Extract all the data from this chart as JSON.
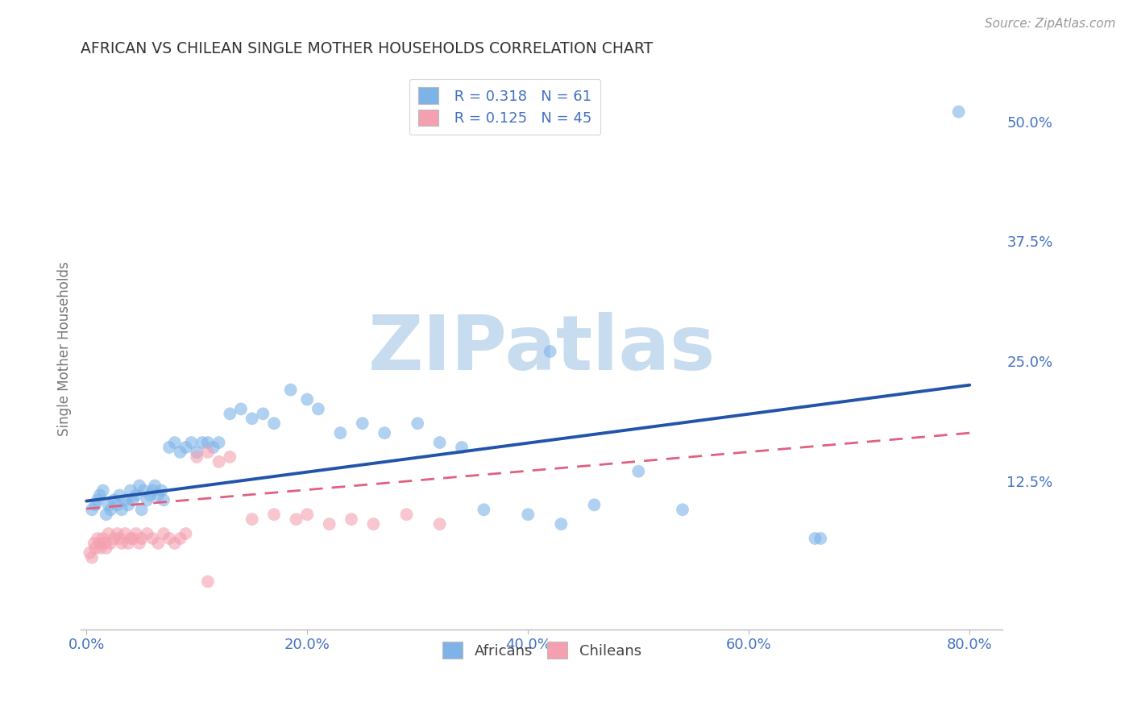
{
  "title": "AFRICAN VS CHILEAN SINGLE MOTHER HOUSEHOLDS CORRELATION CHART",
  "source": "Source: ZipAtlas.com",
  "ylabel": "Single Mother Households",
  "xlabel_ticks": [
    "0.0%",
    "20.0%",
    "40.0%",
    "60.0%",
    "80.0%"
  ],
  "xlabel_vals": [
    0.0,
    0.2,
    0.4,
    0.6,
    0.8
  ],
  "ylabel_ticks": [
    "12.5%",
    "25.0%",
    "37.5%",
    "50.0%"
  ],
  "ylabel_vals": [
    0.125,
    0.25,
    0.375,
    0.5
  ],
  "xlim": [
    -0.005,
    0.83
  ],
  "ylim": [
    -0.03,
    0.555
  ],
  "african_color": "#7EB3E8",
  "chilean_color": "#F4A0B0",
  "african_line_color": "#2255AA",
  "chilean_line_color": "#E06080",
  "african_R": 0.318,
  "african_N": 61,
  "chilean_R": 0.125,
  "chilean_N": 45,
  "african_x": [
    0.005,
    0.008,
    0.01,
    0.012,
    0.015,
    0.018,
    0.02,
    0.022,
    0.025,
    0.028,
    0.03,
    0.032,
    0.035,
    0.038,
    0.04,
    0.042,
    0.045,
    0.048,
    0.05,
    0.052,
    0.055,
    0.058,
    0.06,
    0.062,
    0.065,
    0.068,
    0.07,
    0.075,
    0.08,
    0.085,
    0.09,
    0.095,
    0.1,
    0.105,
    0.11,
    0.115,
    0.12,
    0.13,
    0.14,
    0.15,
    0.16,
    0.17,
    0.185,
    0.2,
    0.21,
    0.23,
    0.25,
    0.27,
    0.3,
    0.32,
    0.34,
    0.36,
    0.4,
    0.43,
    0.46,
    0.5,
    0.54,
    0.66,
    0.665,
    0.79,
    0.42
  ],
  "african_y": [
    0.095,
    0.1,
    0.105,
    0.11,
    0.115,
    0.09,
    0.1,
    0.095,
    0.105,
    0.1,
    0.11,
    0.095,
    0.105,
    0.1,
    0.115,
    0.105,
    0.11,
    0.12,
    0.095,
    0.115,
    0.105,
    0.11,
    0.115,
    0.12,
    0.11,
    0.115,
    0.105,
    0.16,
    0.165,
    0.155,
    0.16,
    0.165,
    0.155,
    0.165,
    0.165,
    0.16,
    0.165,
    0.195,
    0.2,
    0.19,
    0.195,
    0.185,
    0.22,
    0.21,
    0.2,
    0.175,
    0.185,
    0.175,
    0.185,
    0.165,
    0.16,
    0.095,
    0.09,
    0.08,
    0.1,
    0.135,
    0.095,
    0.065,
    0.065,
    0.51,
    0.26
  ],
  "chilean_x": [
    0.003,
    0.005,
    0.007,
    0.008,
    0.01,
    0.012,
    0.013,
    0.015,
    0.017,
    0.018,
    0.02,
    0.022,
    0.025,
    0.028,
    0.03,
    0.032,
    0.035,
    0.038,
    0.04,
    0.042,
    0.045,
    0.048,
    0.05,
    0.055,
    0.06,
    0.065,
    0.07,
    0.075,
    0.08,
    0.085,
    0.09,
    0.1,
    0.11,
    0.12,
    0.13,
    0.15,
    0.17,
    0.19,
    0.2,
    0.22,
    0.24,
    0.26,
    0.29,
    0.32,
    0.11
  ],
  "chilean_y": [
    0.05,
    0.045,
    0.06,
    0.055,
    0.065,
    0.06,
    0.055,
    0.065,
    0.06,
    0.055,
    0.07,
    0.06,
    0.065,
    0.07,
    0.065,
    0.06,
    0.07,
    0.06,
    0.065,
    0.065,
    0.07,
    0.06,
    0.065,
    0.07,
    0.065,
    0.06,
    0.07,
    0.065,
    0.06,
    0.065,
    0.07,
    0.15,
    0.155,
    0.145,
    0.15,
    0.085,
    0.09,
    0.085,
    0.09,
    0.08,
    0.085,
    0.08,
    0.09,
    0.08,
    0.02
  ],
  "african_trend_x0": 0.0,
  "african_trend_y0": 0.104,
  "african_trend_x1": 0.8,
  "african_trend_y1": 0.225,
  "chilean_trend_x0": 0.0,
  "chilean_trend_y0": 0.096,
  "chilean_trend_x1": 0.8,
  "chilean_trend_y1": 0.175,
  "watermark_text": "ZIPatlas",
  "watermark_color": "#C8DCF0",
  "background_color": "#FFFFFF",
  "grid_color": "#CCCCCC",
  "title_color": "#333333",
  "axis_color": "#4472C4",
  "ylabel_label_color": "#777777"
}
